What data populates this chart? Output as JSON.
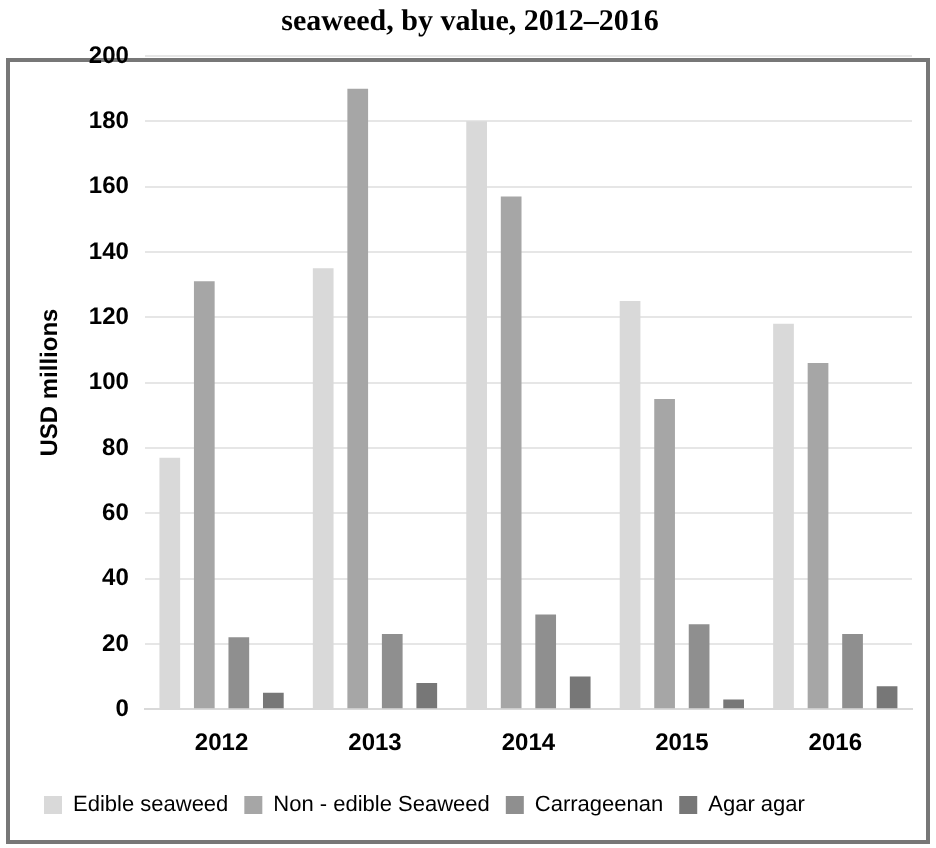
{
  "chart_data": {
    "type": "bar",
    "title": "seaweed, by value, 2012–2016",
    "ylabel": "USD millions",
    "categories": [
      "2012",
      "2013",
      "2014",
      "2015",
      "2016"
    ],
    "series": [
      {
        "name": "Edible seaweed",
        "color": "#d9d9d9",
        "values": [
          77,
          135,
          180,
          125,
          118
        ]
      },
      {
        "name": "Non - edible Seaweed",
        "color": "#a6a6a6",
        "values": [
          131,
          190,
          157,
          95,
          106
        ]
      },
      {
        "name": "Carrageenan",
        "color": "#8f8f8f",
        "values": [
          22,
          23,
          29,
          26,
          23
        ]
      },
      {
        "name": "Agar agar",
        "color": "#777777",
        "values": [
          5,
          8,
          10,
          3,
          7
        ]
      }
    ],
    "ylim": [
      0,
      200
    ],
    "yticks": [
      0,
      20,
      40,
      60,
      80,
      100,
      120,
      140,
      160,
      180,
      200
    ],
    "grid": "y",
    "legend": "bottom"
  }
}
